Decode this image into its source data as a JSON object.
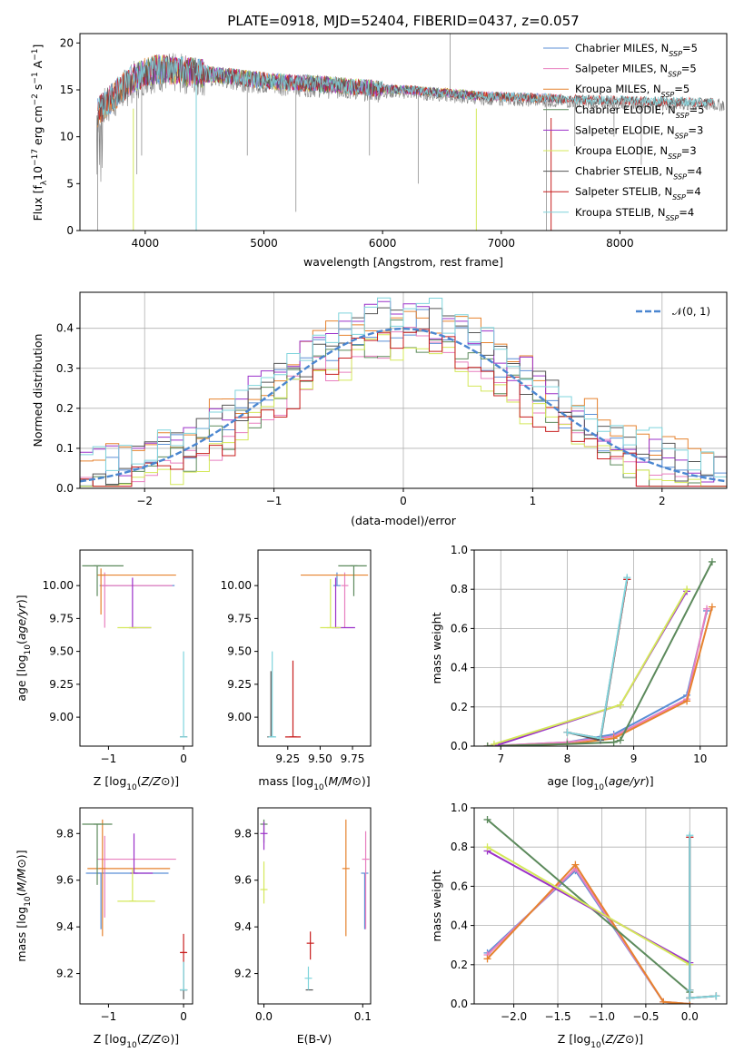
{
  "figure_title": "PLATE=0918, MJD=52404, FIBERID=0437, z=0.057",
  "colors": {
    "Chabrier MILES": "#5b8fd6",
    "Salpeter MILES": "#e87fbf",
    "Kroupa MILES": "#e6822e",
    "Chabrier ELODIE": "#5c8a5c",
    "Salpeter ELODIE": "#9b30c9",
    "Kroupa ELODIE": "#d4e85a",
    "Chabrier STELIB": "#555555",
    "Salpeter STELIB": "#c81e1e",
    "Kroupa STELIB": "#7fd4dc",
    "data": "#808080"
  },
  "chart_data": [
    {
      "id": "spectrum",
      "type": "line",
      "xlabel": "wavelength [Angstrom, rest frame]",
      "ylabel_parts": [
        "Flux [f",
        "λ",
        "10",
        "−17",
        " erg cm",
        "−2",
        " s",
        "−1",
        " A",
        "−1",
        "]"
      ],
      "xlim": [
        3450,
        8900
      ],
      "ylim": [
        0,
        21
      ],
      "xticks": [
        4000,
        5000,
        6000,
        7000,
        8000
      ],
      "yticks": [
        0,
        5,
        10,
        15,
        20
      ],
      "legend": {
        "position": "upper right",
        "entries": [
          {
            "name": "Chabrier MILES",
            "n": "5"
          },
          {
            "name": "Salpeter MILES",
            "n": "5"
          },
          {
            "name": "Kroupa MILES",
            "n": "5"
          },
          {
            "name": "Chabrier ELODIE",
            "n": "5"
          },
          {
            "name": "Salpeter ELODIE",
            "n": "3"
          },
          {
            "name": "Kroupa ELODIE",
            "n": "3"
          },
          {
            "name": "Chabrier STELIB",
            "n": "4"
          },
          {
            "name": "Salpeter STELIB",
            "n": "4"
          },
          {
            "name": "Kroupa STELIB",
            "n": "4"
          }
        ]
      },
      "continuum": {
        "x": [
          3600,
          3700,
          3800,
          3900,
          4000,
          4100,
          4200,
          4400,
          4600,
          4800,
          5000,
          5200,
          5400,
          5600,
          5800,
          6000,
          6200,
          6400,
          6600,
          6800,
          7000,
          7200,
          7400,
          7600,
          7800,
          8000,
          8200,
          8400,
          8600,
          8800
        ],
        "y": [
          12.3,
          13.6,
          14.8,
          15.9,
          16.6,
          16.9,
          16.8,
          16.6,
          16.3,
          16.0,
          15.7,
          15.5,
          15.4,
          15.2,
          15.0,
          14.8,
          14.7,
          14.5,
          14.3,
          14.1,
          14.0,
          13.9,
          13.8,
          13.7,
          13.6,
          13.6,
          13.5,
          13.5,
          13.4,
          13.4
        ]
      },
      "model_range": {
        "MILES": [
          3600,
          7500
        ],
        "ELODIE": [
          3900,
          6800
        ],
        "STELIB": [
          3600,
          8800
        ]
      }
    },
    {
      "id": "residuals",
      "type": "step",
      "xlabel": "(data-model)/error",
      "ylabel": "Normed distribution",
      "xlim": [
        -2.5,
        2.5
      ],
      "ylim": [
        0,
        0.49
      ],
      "xticks": [
        -2,
        -1,
        0,
        1,
        2
      ],
      "yticks": [
        0.0,
        0.1,
        0.2,
        0.3,
        0.4
      ],
      "grid": true,
      "legend": {
        "position": "upper right",
        "entries": [
          {
            "name": "𝒩(0, 1)",
            "style": "dashed"
          }
        ]
      },
      "bin_edges_start": -2.5,
      "bin_width": 0.1,
      "series_scatter": [
        0.01,
        -0.03,
        0.04,
        -0.02,
        0.03,
        -0.05,
        0.02,
        -0.04,
        0.05
      ]
    },
    {
      "id": "age-vs-Z",
      "type": "errorbar",
      "xlabel": "Z [log10(Z/Z⊙)]",
      "ylabel": "age  [log10(age/yr)]",
      "xlim": [
        -1.38,
        0.12
      ],
      "ylim": [
        8.78,
        10.27
      ],
      "xticks": [
        -1,
        0
      ],
      "yticks": [
        9.0,
        9.25,
        9.5,
        9.75,
        10.0
      ],
      "points": [
        {
          "s": "Chabrier MILES",
          "x": -1.07,
          "xe": [
            0.0,
            0.95
          ],
          "y": 10.0,
          "ye": [
            0.0,
            0.0
          ]
        },
        {
          "s": "Salpeter MILES",
          "x": -1.05,
          "xe": [
            0.0,
            0.9
          ],
          "y": 10.0,
          "ye": [
            0.32,
            0.1
          ]
        },
        {
          "s": "Kroupa MILES",
          "x": -1.1,
          "xe": [
            0.0,
            1.0
          ],
          "y": 10.08,
          "ye": [
            0.3,
            0.05
          ]
        },
        {
          "s": "Chabrier ELODIE",
          "x": -1.15,
          "xe": [
            0.2,
            0.35
          ],
          "y": 10.15,
          "ye": [
            0.23,
            0.0
          ]
        },
        {
          "s": "Salpeter ELODIE",
          "x": -0.68,
          "xe": [
            0.0,
            0.25
          ],
          "y": 9.68,
          "ye": [
            0.0,
            0.38
          ]
        },
        {
          "s": "Kroupa ELODIE",
          "x": -0.68,
          "xe": [
            0.2,
            0.25
          ],
          "y": 9.68,
          "ye": [
            0.0,
            0.0
          ]
        },
        {
          "s": "Chabrier STELIB",
          "x": 0.0,
          "xe": [
            0.0,
            0.0
          ],
          "y": 8.85,
          "ye": [
            0.0,
            0.0
          ]
        },
        {
          "s": "Salpeter STELIB",
          "x": 0.0,
          "xe": [
            0.0,
            0.0
          ],
          "y": 8.85,
          "ye": [
            0.0,
            0.0
          ]
        },
        {
          "s": "Kroupa STELIB",
          "x": 0.0,
          "xe": [
            0.05,
            0.05
          ],
          "y": 8.85,
          "ye": [
            0.0,
            0.65
          ]
        }
      ]
    },
    {
      "id": "age-vs-mass",
      "type": "errorbar",
      "xlabel": "mass [log10(M/M⊙)]",
      "ylabel": "",
      "xlim": [
        9.02,
        9.89
      ],
      "ylim": [
        8.78,
        10.27
      ],
      "xticks": [
        9.25,
        9.5,
        9.75
      ],
      "yticks": [
        9.0,
        9.25,
        9.5,
        9.75,
        10.0
      ],
      "points": [
        {
          "s": "Chabrier MILES",
          "x": 9.63,
          "xe": [
            0.0,
            0.0
          ],
          "y": 10.0,
          "ye": [
            0.0,
            0.1
          ]
        },
        {
          "s": "Salpeter MILES",
          "x": 9.69,
          "xe": [
            0.0,
            0.0
          ],
          "y": 10.0,
          "ye": [
            0.32,
            0.1
          ]
        },
        {
          "s": "Kroupa MILES",
          "x": 9.65,
          "xe": [
            0.3,
            0.22
          ],
          "y": 10.08,
          "ye": [
            0.0,
            0.0
          ]
        },
        {
          "s": "Chabrier ELODIE",
          "x": 9.76,
          "xe": [
            0.12,
            0.1
          ],
          "y": 10.15,
          "ye": [
            0.23,
            0.0
          ]
        },
        {
          "s": "Salpeter ELODIE",
          "x": 9.62,
          "xe": [
            0.0,
            0.15
          ],
          "y": 9.68,
          "ye": [
            0.0,
            0.38
          ]
        },
        {
          "s": "Kroupa ELODIE",
          "x": 9.58,
          "xe": [
            0.08,
            0.08
          ],
          "y": 9.68,
          "ye": [
            0.0,
            0.37
          ]
        },
        {
          "s": "Chabrier STELIB",
          "x": 9.12,
          "xe": [
            0.0,
            0.0
          ],
          "y": 8.85,
          "ye": [
            0.0,
            0.5
          ]
        },
        {
          "s": "Salpeter STELIB",
          "x": 9.29,
          "xe": [
            0.06,
            0.06
          ],
          "y": 8.85,
          "ye": [
            0.0,
            0.58
          ]
        },
        {
          "s": "Kroupa STELIB",
          "x": 9.13,
          "xe": [
            0.03,
            0.03
          ],
          "y": 8.85,
          "ye": [
            0.0,
            0.65
          ]
        }
      ]
    },
    {
      "id": "massweight-vs-age",
      "type": "line",
      "xlabel": "age  [log10(age/yr)]",
      "ylabel": "mass weight",
      "xlim": [
        6.6,
        10.4
      ],
      "ylim": [
        0,
        1.0
      ],
      "xticks": [
        7,
        8,
        9,
        10
      ],
      "yticks": [
        0.0,
        0.2,
        0.4,
        0.6,
        0.8,
        1.0
      ],
      "grid": true,
      "series": [
        {
          "name": "Chabrier MILES",
          "x": [
            6.8,
            8.0,
            8.7,
            9.8,
            10.1
          ],
          "y": [
            0.0,
            0.02,
            0.06,
            0.26,
            0.69
          ]
        },
        {
          "name": "Salpeter MILES",
          "x": [
            6.8,
            8.0,
            8.7,
            9.8,
            10.1
          ],
          "y": [
            0.0,
            0.02,
            0.05,
            0.24,
            0.7
          ]
        },
        {
          "name": "Kroupa MILES",
          "x": [
            6.8,
            8.0,
            8.7,
            9.8,
            10.18
          ],
          "y": [
            0.0,
            0.01,
            0.04,
            0.23,
            0.71
          ]
        },
        {
          "name": "Chabrier ELODIE",
          "x": [
            6.8,
            8.0,
            8.7,
            8.8,
            10.18
          ],
          "y": [
            0.0,
            0.01,
            0.02,
            0.03,
            0.94
          ]
        },
        {
          "name": "Salpeter ELODIE",
          "x": [
            6.9,
            8.8,
            9.8
          ],
          "y": [
            0.0,
            0.21,
            0.79
          ]
        },
        {
          "name": "Kroupa ELODIE",
          "x": [
            6.9,
            8.8,
            9.8
          ],
          "y": [
            0.01,
            0.21,
            0.8
          ]
        },
        {
          "name": "Chabrier STELIB",
          "x": [
            8.0,
            8.5,
            8.9
          ],
          "y": [
            0.07,
            0.03,
            0.85
          ]
        },
        {
          "name": "Salpeter STELIB",
          "x": [
            8.0,
            8.5,
            8.9
          ],
          "y": [
            0.07,
            0.04,
            0.85
          ]
        },
        {
          "name": "Kroupa STELIB",
          "x": [
            8.0,
            8.5,
            8.9
          ],
          "y": [
            0.07,
            0.04,
            0.86
          ]
        }
      ]
    },
    {
      "id": "mass-vs-Z",
      "type": "errorbar",
      "xlabel": "Z [log10(Z/Z⊙)]",
      "ylabel": "mass [log10(M/M⊙)]",
      "xlim": [
        -1.38,
        0.12
      ],
      "ylim": [
        9.07,
        9.91
      ],
      "xticks": [
        -1,
        0
      ],
      "yticks": [
        9.2,
        9.4,
        9.6,
        9.8
      ],
      "points": [
        {
          "s": "Chabrier MILES",
          "x": -1.1,
          "xe": [
            0.2,
            0.9
          ],
          "y": 9.63,
          "ye": [
            0.24,
            0.0
          ]
        },
        {
          "s": "Salpeter MILES",
          "x": -1.05,
          "xe": [
            0.1,
            0.95
          ],
          "y": 9.69,
          "ye": [
            0.25,
            0.1
          ]
        },
        {
          "s": "Kroupa MILES",
          "x": -1.08,
          "xe": [
            0.2,
            0.9
          ],
          "y": 9.65,
          "ye": [
            0.29,
            0.21
          ]
        },
        {
          "s": "Chabrier ELODIE",
          "x": -1.15,
          "xe": [
            0.2,
            0.2
          ],
          "y": 9.84,
          "ye": [
            0.26,
            0.0
          ]
        },
        {
          "s": "Salpeter ELODIE",
          "x": -0.66,
          "xe": [
            0.0,
            0.25
          ],
          "y": 9.63,
          "ye": [
            0.0,
            0.17
          ]
        },
        {
          "s": "Kroupa ELODIE",
          "x": -0.68,
          "xe": [
            0.2,
            0.3
          ],
          "y": 9.51,
          "ye": [
            0.0,
            0.14
          ]
        },
        {
          "s": "Chabrier STELIB",
          "x": 0.0,
          "xe": [
            0.05,
            0.05
          ],
          "y": 9.13,
          "ye": [
            0.04,
            0.12
          ]
        },
        {
          "s": "Salpeter STELIB",
          "x": 0.0,
          "xe": [
            0.04,
            0.04
          ],
          "y": 9.29,
          "ye": [
            0.04,
            0.08
          ]
        },
        {
          "s": "Kroupa STELIB",
          "x": 0.0,
          "xe": [
            0.03,
            0.03
          ],
          "y": 9.13,
          "ye": [
            0.0,
            0.12
          ]
        }
      ]
    },
    {
      "id": "mass-vs-EBV",
      "type": "errorbar",
      "xlabel": "E(B-V)",
      "ylabel": "",
      "xlim": [
        -0.006,
        0.108
      ],
      "ylim": [
        9.07,
        9.91
      ],
      "xticks": [
        0.0,
        0.1
      ],
      "yticks": [
        9.2,
        9.4,
        9.6,
        9.8
      ],
      "points": [
        {
          "s": "Chabrier MILES",
          "x": 0.102,
          "xe": [
            0,
            0
          ],
          "y": 9.63,
          "ye": [
            0.24,
            0.0
          ]
        },
        {
          "s": "Salpeter MILES",
          "x": 0.103,
          "xe": [
            0,
            0
          ],
          "y": 9.69,
          "ye": [
            0.3,
            0.12
          ]
        },
        {
          "s": "Kroupa MILES",
          "x": 0.083,
          "xe": [
            0,
            0
          ],
          "y": 9.65,
          "ye": [
            0.29,
            0.21
          ]
        },
        {
          "s": "Chabrier ELODIE",
          "x": 0.0,
          "xe": [
            0,
            0
          ],
          "y": 9.84,
          "ye": [
            0.08,
            0.02
          ]
        },
        {
          "s": "Salpeter ELODIE",
          "x": 0.0,
          "xe": [
            0,
            0
          ],
          "y": 9.8,
          "ye": [
            0.07,
            0.05
          ]
        },
        {
          "s": "Kroupa ELODIE",
          "x": 0.0,
          "xe": [
            0,
            0
          ],
          "y": 9.56,
          "ye": [
            0.06,
            0.12
          ]
        },
        {
          "s": "Chabrier STELIB",
          "x": 0.046,
          "xe": [
            0,
            0
          ],
          "y": 9.13,
          "ye": [
            0.0,
            0.0
          ]
        },
        {
          "s": "Salpeter STELIB",
          "x": 0.047,
          "xe": [
            0,
            0
          ],
          "y": 9.33,
          "ye": [
            0.07,
            0.05
          ]
        },
        {
          "s": "Kroupa STELIB",
          "x": 0.045,
          "xe": [
            0,
            0
          ],
          "y": 9.18,
          "ye": [
            0.05,
            0.05
          ]
        }
      ]
    },
    {
      "id": "massweight-vs-Z",
      "type": "line",
      "xlabel": "Z [log10(Z/Z⊙)]",
      "ylabel": "mass weight",
      "xlim": [
        -2.45,
        0.42
      ],
      "ylim": [
        0,
        1.0
      ],
      "xticks": [
        -2.0,
        -1.5,
        -1.0,
        -0.5,
        0.0
      ],
      "yticks": [
        0.0,
        0.2,
        0.4,
        0.6,
        0.8,
        1.0
      ],
      "grid": true,
      "series": [
        {
          "name": "Chabrier MILES",
          "x": [
            -2.3,
            -1.3,
            -0.3,
            0.0
          ],
          "y": [
            0.26,
            0.68,
            0.01,
            0.0
          ]
        },
        {
          "name": "Salpeter MILES",
          "x": [
            -2.3,
            -1.3,
            -0.3,
            0.0
          ],
          "y": [
            0.25,
            0.69,
            0.01,
            0.0
          ]
        },
        {
          "name": "Kroupa MILES",
          "x": [
            -2.3,
            -1.3,
            -0.3,
            0.0
          ],
          "y": [
            0.23,
            0.71,
            0.01,
            0.0
          ]
        },
        {
          "name": "Chabrier ELODIE",
          "x": [
            -2.3,
            0.0
          ],
          "y": [
            0.94,
            0.06
          ]
        },
        {
          "name": "Salpeter ELODIE",
          "x": [
            -2.3,
            0.0
          ],
          "y": [
            0.78,
            0.21
          ]
        },
        {
          "name": "Kroupa ELODIE",
          "x": [
            -2.3,
            0.0
          ],
          "y": [
            0.8,
            0.2
          ]
        },
        {
          "name": "Chabrier STELIB",
          "x": [
            0.0,
            0.0,
            0.0,
            0.3
          ],
          "y": [
            0.85,
            0.07,
            0.03,
            0.04
          ]
        },
        {
          "name": "Salpeter STELIB",
          "x": [
            0.0,
            0.0,
            0.0,
            0.3
          ],
          "y": [
            0.85,
            0.07,
            0.03,
            0.04
          ]
        },
        {
          "name": "Kroupa STELIB",
          "x": [
            0.0,
            0.0,
            0.0,
            0.3
          ],
          "y": [
            0.86,
            0.07,
            0.03,
            0.04
          ]
        }
      ]
    }
  ]
}
